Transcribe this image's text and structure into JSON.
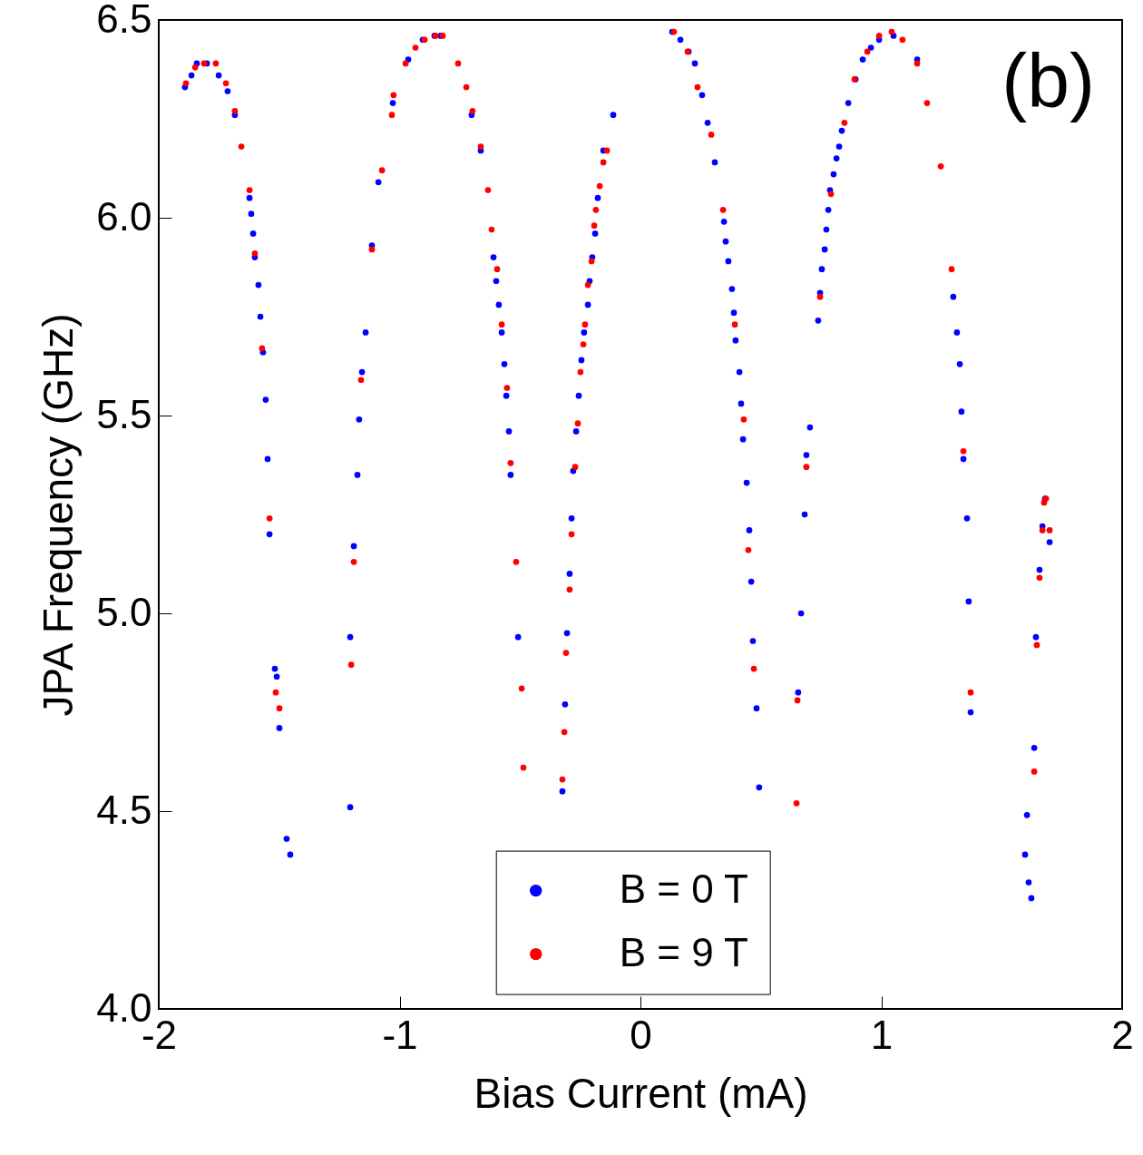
{
  "chart_data": {
    "type": "scatter",
    "xlabel": "Bias Current (mA)",
    "ylabel": "JPA Frequency (GHz)",
    "xlim": [
      -2,
      2
    ],
    "ylim": [
      4.0,
      6.5
    ],
    "xticks": [
      -2,
      -1,
      0,
      1,
      2
    ],
    "yticks": [
      {
        "value": 4.0,
        "label": "4.0"
      },
      4.5,
      {
        "value": 5.0,
        "label": "5.0"
      },
      5.5,
      {
        "value": 6.0,
        "label": "6.0"
      },
      6.5
    ],
    "grid": false,
    "legend": "bottom",
    "marker": "circle",
    "annotations": [
      "(b)"
    ],
    "series": [
      {
        "name": "B = 0 T",
        "color": "#0000ff",
        "x": [
          -1.891,
          -1.864,
          -1.842,
          -1.8,
          -1.751,
          -1.714,
          -1.684,
          -1.623,
          -1.616,
          -1.608,
          -1.601,
          -1.586,
          -1.578,
          -1.567,
          -1.556,
          -1.548,
          -1.54,
          -1.518,
          -1.51,
          -1.499,
          -1.469,
          -1.454,
          -1.205,
          -1.205,
          -1.19,
          -1.175,
          -1.168,
          -1.156,
          -1.141,
          -1.115,
          -1.088,
          -1.028,
          -0.964,
          -0.904,
          -0.855,
          -0.829,
          -0.701,
          -0.663,
          -0.61,
          -0.599,
          -0.588,
          -0.576,
          -0.565,
          -0.557,
          -0.546,
          -0.539,
          -0.508,
          -0.324,
          -0.313,
          -0.305,
          -0.294,
          -0.286,
          -0.279,
          -0.267,
          -0.256,
          -0.245,
          -0.234,
          -0.218,
          -0.211,
          -0.2,
          -0.188,
          -0.177,
          -0.154,
          -0.113,
          0.132,
          0.166,
          0.2,
          0.226,
          0.256,
          0.279,
          0.309,
          0.347,
          0.354,
          0.365,
          0.38,
          0.388,
          0.395,
          0.411,
          0.418,
          0.426,
          0.441,
          0.452,
          0.46,
          0.467,
          0.482,
          0.493,
          0.655,
          0.667,
          0.682,
          0.689,
          0.704,
          0.738,
          0.746,
          0.753,
          0.765,
          0.772,
          0.78,
          0.787,
          0.802,
          0.814,
          0.825,
          0.836,
          0.863,
          0.893,
          0.923,
          0.957,
          0.991,
          1.051,
          1.149,
          1.299,
          1.314,
          1.326,
          1.333,
          1.341,
          1.356,
          1.363,
          1.371,
          1.597,
          1.605,
          1.612,
          1.623,
          1.635,
          1.642,
          1.657,
          1.669,
          1.68,
          1.699
        ],
        "values": [
          6.33,
          6.36,
          6.39,
          6.39,
          6.36,
          6.32,
          6.26,
          6.05,
          6.01,
          5.96,
          5.9,
          5.83,
          5.75,
          5.66,
          5.54,
          5.39,
          5.2,
          4.86,
          4.84,
          4.71,
          4.43,
          4.39,
          4.51,
          4.94,
          5.17,
          5.35,
          5.49,
          5.61,
          5.71,
          5.93,
          6.09,
          6.29,
          6.4,
          6.45,
          6.46,
          6.46,
          6.26,
          6.17,
          5.9,
          5.84,
          5.78,
          5.71,
          5.63,
          5.55,
          5.46,
          5.35,
          4.94,
          4.55,
          4.77,
          4.95,
          5.1,
          5.24,
          5.36,
          5.46,
          5.55,
          5.64,
          5.71,
          5.78,
          5.84,
          5.9,
          5.96,
          6.05,
          6.17,
          6.26,
          6.47,
          6.45,
          6.42,
          6.39,
          6.31,
          6.24,
          6.14,
          5.99,
          5.94,
          5.89,
          5.82,
          5.76,
          5.69,
          5.61,
          5.53,
          5.44,
          5.33,
          5.21,
          5.08,
          4.93,
          4.76,
          4.56,
          4.8,
          5.0,
          5.25,
          5.4,
          5.47,
          5.74,
          5.81,
          5.87,
          5.92,
          5.97,
          6.02,
          6.07,
          6.11,
          6.15,
          6.18,
          6.22,
          6.29,
          6.35,
          6.4,
          6.43,
          6.45,
          6.46,
          6.4,
          5.8,
          5.71,
          5.63,
          5.51,
          5.39,
          5.24,
          5.03,
          4.75,
          4.39,
          4.49,
          4.32,
          4.28,
          4.66,
          4.94,
          5.11,
          5.22,
          5.29,
          5.18
        ]
      },
      {
        "name": "B = 9 T",
        "color": "#ff0000",
        "x": [
          -1.887,
          -1.849,
          -1.812,
          -1.763,
          -1.721,
          -1.684,
          -1.657,
          -1.623,
          -1.601,
          -1.571,
          -1.54,
          -1.514,
          -1.499,
          -1.201,
          -1.19,
          -1.16,
          -1.115,
          -1.073,
          -1.032,
          -1.025,
          -0.975,
          -0.934,
          -0.896,
          -0.851,
          -0.821,
          -0.757,
          -0.723,
          -0.697,
          -0.663,
          -0.633,
          -0.618,
          -0.595,
          -0.576,
          -0.554,
          -0.539,
          -0.516,
          -0.493,
          -0.486,
          -0.324,
          -0.316,
          -0.309,
          -0.294,
          -0.286,
          -0.271,
          -0.26,
          -0.249,
          -0.237,
          -0.23,
          -0.218,
          -0.203,
          -0.192,
          -0.185,
          -0.169,
          -0.154,
          -0.139,
          0.139,
          0.196,
          0.237,
          0.294,
          0.343,
          0.392,
          0.429,
          0.448,
          0.471,
          0.648,
          0.652,
          0.689,
          0.746,
          0.791,
          0.847,
          0.889,
          0.942,
          0.991,
          1.043,
          1.088,
          1.149,
          1.19,
          1.247,
          1.292,
          1.341,
          1.371,
          1.635,
          1.646,
          1.657,
          1.669,
          1.676,
          1.684,
          1.699
        ],
        "values": [
          6.34,
          6.38,
          6.39,
          6.39,
          6.34,
          6.27,
          6.18,
          6.07,
          5.91,
          5.67,
          5.24,
          4.8,
          4.76,
          4.87,
          5.13,
          5.59,
          5.92,
          6.12,
          6.26,
          6.31,
          6.39,
          6.43,
          6.45,
          6.46,
          6.46,
          6.39,
          6.33,
          6.27,
          6.18,
          6.07,
          5.97,
          5.87,
          5.73,
          5.57,
          5.38,
          5.13,
          4.81,
          4.61,
          4.58,
          4.7,
          4.9,
          5.06,
          5.2,
          5.37,
          5.48,
          5.61,
          5.68,
          5.73,
          5.83,
          5.89,
          5.98,
          6.02,
          6.08,
          6.14,
          6.17,
          6.47,
          6.42,
          6.33,
          6.21,
          6.02,
          5.73,
          5.49,
          5.16,
          4.86,
          4.52,
          4.78,
          5.37,
          5.8,
          6.06,
          6.24,
          6.35,
          6.42,
          6.46,
          6.47,
          6.45,
          6.39,
          6.29,
          6.13,
          5.87,
          5.41,
          4.8,
          4.6,
          4.92,
          5.09,
          5.21,
          5.28,
          5.29,
          5.21
        ]
      }
    ]
  }
}
